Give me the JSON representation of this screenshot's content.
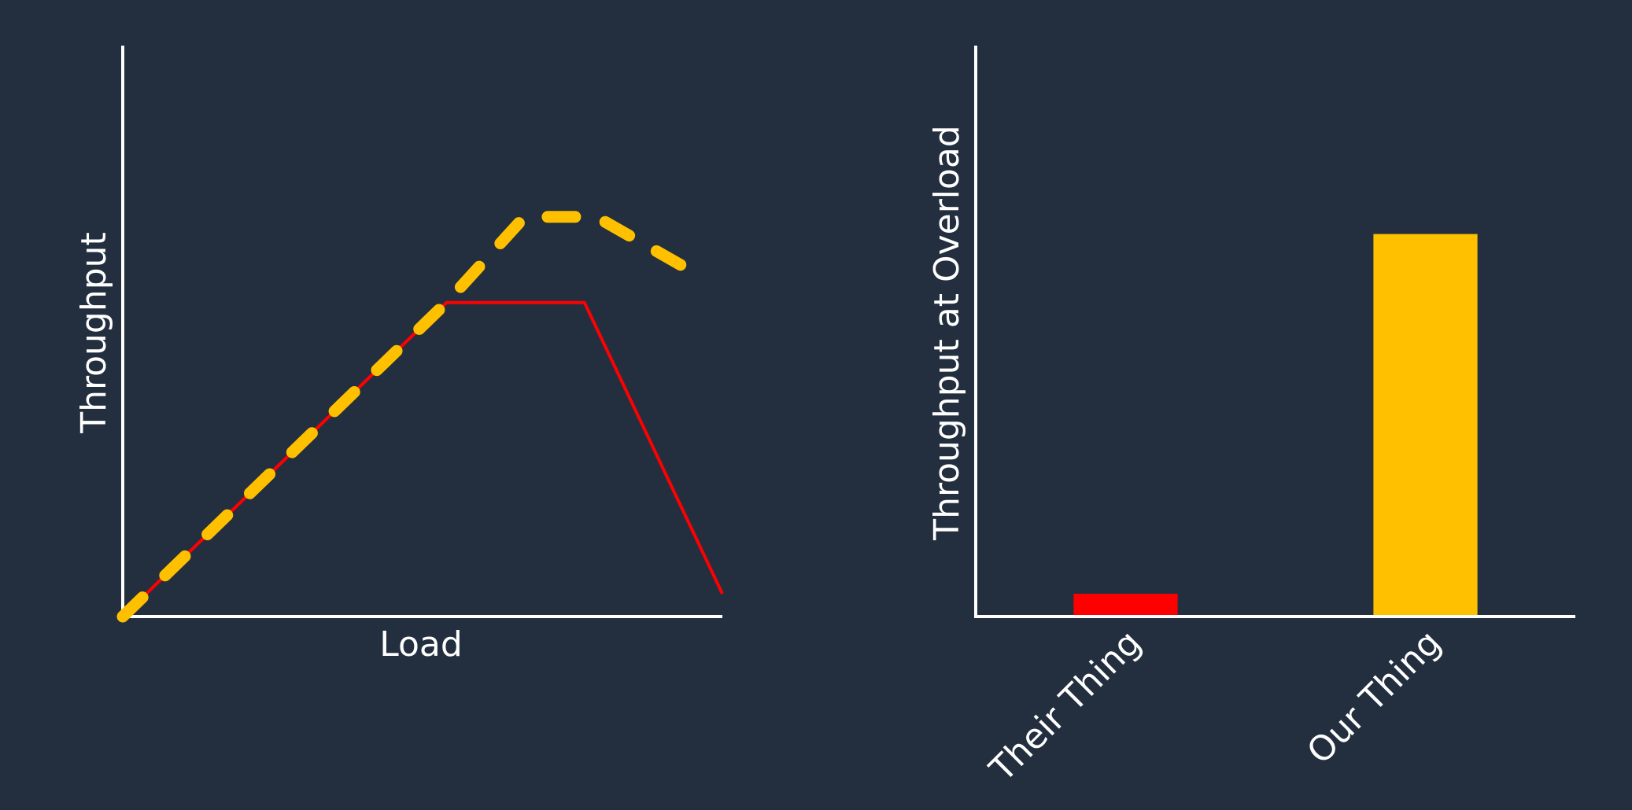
{
  "chart_data": [
    {
      "type": "line",
      "xlabel": "Load",
      "ylabel": "Throughput",
      "xlim": [
        0,
        100
      ],
      "ylim": [
        0,
        100
      ],
      "grid": false,
      "series": [
        {
          "style": "solid",
          "color": "#ff0000",
          "x": [
            0,
            54,
            77,
            100
          ],
          "y": [
            0,
            55,
            55,
            4
          ]
        },
        {
          "style": "dashed",
          "color": "#ffc000",
          "x": [
            0,
            54,
            67,
            79,
            94
          ],
          "y": [
            0,
            55,
            70,
            70,
            61
          ]
        }
      ]
    },
    {
      "type": "bar",
      "categories": [
        "Their Thing",
        "Our Thing"
      ],
      "values": [
        4,
        67
      ],
      "colors": [
        "#ff0000",
        "#ffc000"
      ],
      "xlabel": "",
      "ylabel": "Throughput at Overload",
      "ylim": [
        0,
        100
      ],
      "grid": false
    }
  ]
}
